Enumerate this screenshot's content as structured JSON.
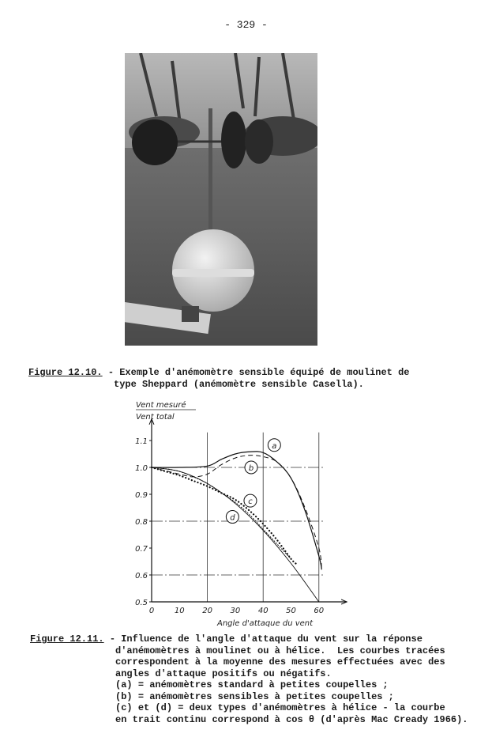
{
  "page_number": "- 329 -",
  "figure_12_10": {
    "label": "Figure 12.10.",
    "caption_lines": [
      "- Exemple d'anémomètre sensible équipé de moulinet de",
      "  type Sheppard (anémomètre sensible Casella)."
    ]
  },
  "figure_12_11": {
    "label": "Figure 12.11.",
    "caption_lines": [
      "- Influence de l'angle d'attaque du vent sur la réponse",
      "  d'anémomètres à moulinet ou à hélice.  Les courbes tracées",
      "  correspondent à la moyenne des mesures effectuées avec des",
      "  angles d'attaque positifs ou négatifs.",
      "  (a) = anémomètres standard à petites coupelles ;",
      "  (b) = anémomètres sensibles à petites coupelles ;",
      "  (c) et (d) = deux types d'anémomètres à hélice - la courbe",
      "  en trait continu correspond à cos θ (d'après Mac Cready 1966)."
    ]
  },
  "chart_data": {
    "type": "line",
    "ylabel_numerator": "Vent mesuré",
    "ylabel_denominator": "Vent total",
    "xlabel": "Angle d'attaque du vent",
    "xlim": [
      0,
      62
    ],
    "ylim": [
      0.5,
      1.15
    ],
    "xticks": [
      "0",
      "10",
      "20",
      "30",
      "40",
      "50",
      "60"
    ],
    "yticks": [
      "0.5",
      "0.6",
      "0.7",
      "0.8",
      "0.9",
      "1.0",
      "1.1"
    ],
    "grid_x": [
      20,
      40,
      60
    ],
    "grid_y": [
      0.6,
      0.8,
      1.0
    ],
    "series": [
      {
        "name": "a",
        "style": "solid",
        "x": [
          0,
          10,
          20,
          25,
          30,
          35,
          40,
          45,
          50,
          55,
          60,
          61
        ],
        "y": [
          1.0,
          1.0,
          1.005,
          1.03,
          1.05,
          1.058,
          1.055,
          1.02,
          0.96,
          0.84,
          0.67,
          0.62
        ]
      },
      {
        "name": "b",
        "style": "dashed",
        "x": [
          0,
          10,
          15,
          20,
          25,
          30,
          35,
          40,
          45,
          50,
          55,
          60,
          61
        ],
        "y": [
          1.0,
          0.975,
          0.965,
          0.975,
          1.01,
          1.035,
          1.045,
          1.04,
          1.02,
          0.96,
          0.85,
          0.7,
          0.62
        ]
      },
      {
        "name": "c",
        "style": "dots",
        "x": [
          0,
          5,
          10,
          15,
          20,
          25,
          30,
          35,
          40,
          45,
          50,
          52
        ],
        "y": [
          1.0,
          0.985,
          0.97,
          0.95,
          0.93,
          0.905,
          0.88,
          0.84,
          0.79,
          0.73,
          0.66,
          0.64
        ]
      },
      {
        "name": "d",
        "style": "circles",
        "x": [
          0,
          5,
          10,
          15,
          20,
          25,
          30,
          35,
          40,
          45,
          50
        ],
        "y": [
          1.0,
          0.995,
          0.985,
          0.965,
          0.94,
          0.905,
          0.87,
          0.825,
          0.77,
          0.715,
          0.66
        ]
      },
      {
        "name": "cos θ",
        "style": "solid-thin",
        "x": [
          0,
          10,
          20,
          30,
          40,
          50,
          60
        ],
        "y": [
          1.0,
          0.985,
          0.94,
          0.866,
          0.766,
          0.643,
          0.5
        ]
      }
    ],
    "annotations": [
      {
        "text": "a",
        "x": 44,
        "y": 1.083
      },
      {
        "text": "b",
        "x": 35.7,
        "y": 1.0
      },
      {
        "text": "c",
        "x": 35.4,
        "y": 0.876
      },
      {
        "text": "d",
        "x": 29,
        "y": 0.816
      }
    ]
  }
}
